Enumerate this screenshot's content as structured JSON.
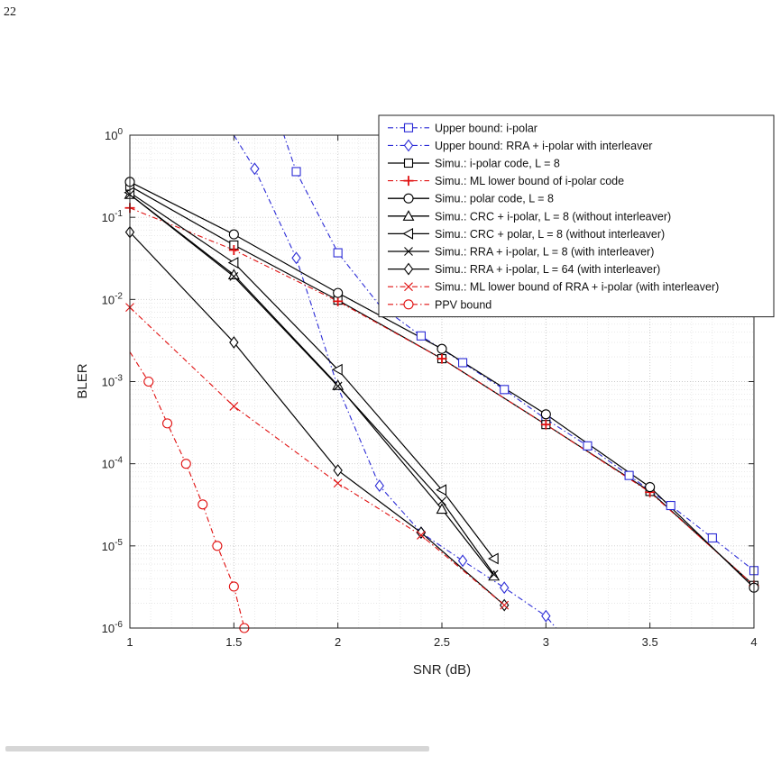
{
  "page_number": "22",
  "chart_data": {
    "type": "line",
    "xlabel": "SNR (dB)",
    "ylabel": "BLER",
    "xlim": [
      1,
      4
    ],
    "ylim": [
      1e-06,
      1
    ],
    "yscale": "log",
    "xticks": [
      1,
      1.5,
      2,
      2.5,
      3,
      3.5,
      4
    ],
    "xtick_labels": [
      "1",
      "1.5",
      "2",
      "2.5",
      "3",
      "3.5",
      "4"
    ],
    "yticks": [
      1e-06,
      1e-05,
      0.0001,
      0.001,
      0.01,
      0.1,
      1
    ],
    "ytick_labels": [
      {
        "base": "10",
        "exp": "-6"
      },
      {
        "base": "10",
        "exp": "-5"
      },
      {
        "base": "10",
        "exp": "-4"
      },
      {
        "base": "10",
        "exp": "-3"
      },
      {
        "base": "10",
        "exp": "-2"
      },
      {
        "base": "10",
        "exp": "-1"
      },
      {
        "base": "10",
        "exp": "0"
      }
    ],
    "grid": true,
    "legend_position": "top-right",
    "series": [
      {
        "name": "Upper bound: i-polar",
        "color": "#2b2bd6",
        "dash": "dashdot",
        "marker": "square",
        "points": [
          [
            1.7,
            2.0
          ],
          [
            1.8,
            0.36
          ],
          [
            2.0,
            0.037
          ],
          [
            2.2,
            0.0085
          ],
          [
            2.4,
            0.0036
          ],
          [
            2.6,
            0.0017
          ],
          [
            2.8,
            0.0008
          ],
          [
            3.0,
            0.00035
          ],
          [
            3.2,
            0.000165
          ],
          [
            3.4,
            7.2e-05
          ],
          [
            3.6,
            3.1e-05
          ],
          [
            3.8,
            1.25e-05
          ],
          [
            4.0,
            5e-06
          ]
        ],
        "marker_points": [
          [
            1.8,
            0.36
          ],
          [
            2.0,
            0.037
          ],
          [
            2.4,
            0.0036
          ],
          [
            2.6,
            0.0017
          ],
          [
            2.8,
            0.0008
          ],
          [
            3.0,
            0.00035
          ],
          [
            3.2,
            0.000165
          ],
          [
            3.4,
            7.2e-05
          ],
          [
            3.6,
            3.1e-05
          ],
          [
            3.8,
            1.25e-05
          ],
          [
            4.0,
            5e-06
          ]
        ]
      },
      {
        "name": "Upper bound: RRA + i-polar with interleaver",
        "color": "#2b2bd6",
        "dash": "dashdot",
        "marker": "diamond",
        "points": [
          [
            1.5,
            1.0
          ],
          [
            1.6,
            0.39
          ],
          [
            1.8,
            0.032
          ],
          [
            2.0,
            0.00085
          ],
          [
            2.2,
            5.4e-05
          ],
          [
            2.4,
            1.45e-05
          ],
          [
            2.6,
            6.6e-06
          ],
          [
            2.8,
            3.1e-06
          ],
          [
            3.0,
            1.4e-06
          ],
          [
            3.1,
            7e-07
          ]
        ],
        "marker_points": [
          [
            1.6,
            0.39
          ],
          [
            1.8,
            0.032
          ],
          [
            2.2,
            5.4e-05
          ],
          [
            2.4,
            1.45e-05
          ],
          [
            2.6,
            6.6e-06
          ],
          [
            2.8,
            3.1e-06
          ],
          [
            3.0,
            1.4e-06
          ]
        ]
      },
      {
        "name": "Simu.: i-polar code, L = 8",
        "color": "#000000",
        "dash": "solid",
        "marker": "square",
        "points": [
          [
            1.0,
            0.24
          ],
          [
            1.5,
            0.046
          ],
          [
            2.0,
            0.0098
          ],
          [
            2.5,
            0.0019
          ],
          [
            3.0,
            0.0003
          ],
          [
            3.5,
            4.6e-05
          ],
          [
            4.0,
            3.3e-06
          ]
        ]
      },
      {
        "name": "Simu.: ML lower bound of i-polar code",
        "color": "#e01010",
        "dash": "dashdot",
        "marker": "plus",
        "points": [
          [
            1.0,
            0.13
          ],
          [
            1.5,
            0.04
          ],
          [
            2.0,
            0.0095
          ],
          [
            2.5,
            0.0019
          ],
          [
            3.0,
            0.0003
          ],
          [
            3.5,
            4.5e-05
          ],
          [
            4.0,
            3.3e-06
          ]
        ]
      },
      {
        "name": "Simu.: polar code, L = 8",
        "color": "#000000",
        "dash": "solid",
        "marker": "circle",
        "points": [
          [
            1.0,
            0.27
          ],
          [
            1.5,
            0.062
          ],
          [
            2.0,
            0.012
          ],
          [
            2.5,
            0.0025
          ],
          [
            3.0,
            0.0004
          ],
          [
            3.5,
            5.2e-05
          ],
          [
            4.0,
            3.1e-06
          ]
        ]
      },
      {
        "name": "Simu.: CRC + i-polar, L = 8 (without interleaver)",
        "color": "#000000",
        "dash": "solid",
        "marker": "triangle-up",
        "points": [
          [
            1.0,
            0.19
          ],
          [
            1.5,
            0.02
          ],
          [
            2.0,
            0.0009
          ],
          [
            2.5,
            2.8e-05
          ],
          [
            2.75,
            4.3e-06
          ]
        ]
      },
      {
        "name": "Simu.: CRC + polar, L = 8 (without interleaver)",
        "color": "#000000",
        "dash": "solid",
        "marker": "triangle-left",
        "points": [
          [
            1.0,
            0.2
          ],
          [
            1.5,
            0.028
          ],
          [
            2.0,
            0.0014
          ],
          [
            2.5,
            4.8e-05
          ],
          [
            2.75,
            7e-06
          ]
        ]
      },
      {
        "name": "Simu.: RRA + i-polar, L = 8 (with interleaver)",
        "color": "#000000",
        "dash": "solid",
        "marker": "x",
        "points": [
          [
            1.0,
            0.19
          ],
          [
            1.5,
            0.019
          ],
          [
            2.0,
            0.00088
          ],
          [
            2.5,
            3.5e-05
          ],
          [
            2.75,
            4.5e-06
          ]
        ]
      },
      {
        "name": "Simu.: RRA + i-polar, L = 64 (with interleaver)",
        "color": "#000000",
        "dash": "solid",
        "marker": "diamond",
        "points": [
          [
            1.0,
            0.066
          ],
          [
            1.5,
            0.003
          ],
          [
            2.0,
            8.3e-05
          ],
          [
            2.4,
            1.45e-05
          ],
          [
            2.8,
            1.9e-06
          ]
        ]
      },
      {
        "name": "Simu.: ML lower bound of RRA +  i-polar (with interleaver)",
        "color": "#e01010",
        "dash": "dashdot",
        "marker": "x",
        "points": [
          [
            1.0,
            0.008
          ],
          [
            1.5,
            0.0005
          ],
          [
            2.0,
            5.8e-05
          ],
          [
            2.4,
            1.35e-05
          ],
          [
            2.8,
            1.9e-06
          ]
        ]
      },
      {
        "name": "PPV bound",
        "color": "#e01010",
        "dash": "dashdot",
        "marker": "circle",
        "points": [
          [
            1.0,
            0.0023
          ],
          [
            1.09,
            0.001
          ],
          [
            1.18,
            0.00031
          ],
          [
            1.27,
            0.0001
          ],
          [
            1.35,
            3.2e-05
          ],
          [
            1.42,
            1e-05
          ],
          [
            1.5,
            3.2e-06
          ],
          [
            1.55,
            1e-06
          ]
        ],
        "marker_points": [
          [
            1.09,
            0.001
          ],
          [
            1.18,
            0.00031
          ],
          [
            1.27,
            0.0001
          ],
          [
            1.35,
            3.2e-05
          ],
          [
            1.42,
            1e-05
          ],
          [
            1.5,
            3.2e-06
          ],
          [
            1.55,
            1e-06
          ]
        ]
      }
    ]
  }
}
